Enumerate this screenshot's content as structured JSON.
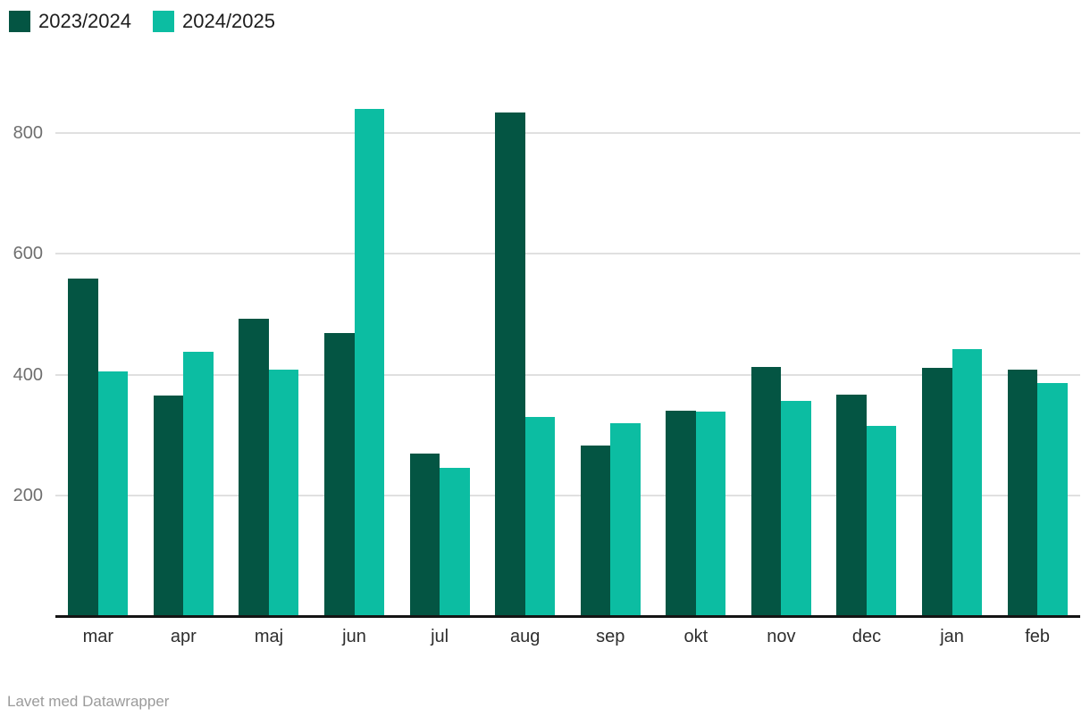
{
  "chart_data": {
    "type": "bar",
    "categories": [
      "mar",
      "apr",
      "maj",
      "jun",
      "jul",
      "aug",
      "sep",
      "okt",
      "nov",
      "dec",
      "jan",
      "feb"
    ],
    "series": [
      {
        "name": "2023/2024",
        "color": "#045543",
        "values": [
          559,
          365,
          493,
          469,
          270,
          835,
          282,
          340,
          413,
          367,
          412,
          408
        ]
      },
      {
        "name": "2024/2025",
        "color": "#0cbda2",
        "values": [
          406,
          438,
          409,
          841,
          246,
          330,
          320,
          339,
          356,
          315,
          443,
          386
        ]
      }
    ],
    "ylim": [
      0,
      870
    ],
    "yticks": [
      200,
      400,
      600,
      800
    ],
    "grid": true,
    "legend_position": "top-left",
    "title": "",
    "xlabel": "",
    "ylabel": ""
  },
  "legend": {
    "items": [
      {
        "label": "2023/2024",
        "color": "#045543"
      },
      {
        "label": "2024/2025",
        "color": "#0cbda2"
      }
    ]
  },
  "axis": {
    "grid_color": "#e0e0e0",
    "baseline_color": "#141414",
    "ytick_color": "#6f6f6f",
    "xtick_color": "#2e2e2e"
  },
  "footer": {
    "attribution": "Lavet med Datawrapper"
  }
}
